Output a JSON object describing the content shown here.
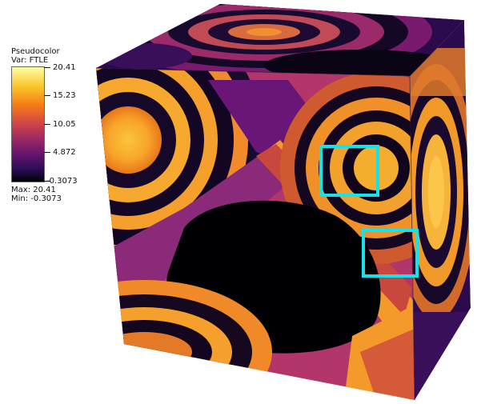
{
  "legend": {
    "title": "Pseudocolor",
    "var": "Var: FTLE",
    "ticks": [
      "20.41",
      "15.23",
      "10.05",
      "4.872",
      "-0.3073"
    ],
    "max": "Max:  20.41",
    "min": "Min: -0.3073",
    "colormap": [
      "#000004",
      "#280b53",
      "#65156e",
      "#9f2a63",
      "#d44842",
      "#f57d15",
      "#fac127",
      "#fcffa4"
    ]
  },
  "highlight_color": "#12e4ec",
  "background_color": "#ffffff"
}
